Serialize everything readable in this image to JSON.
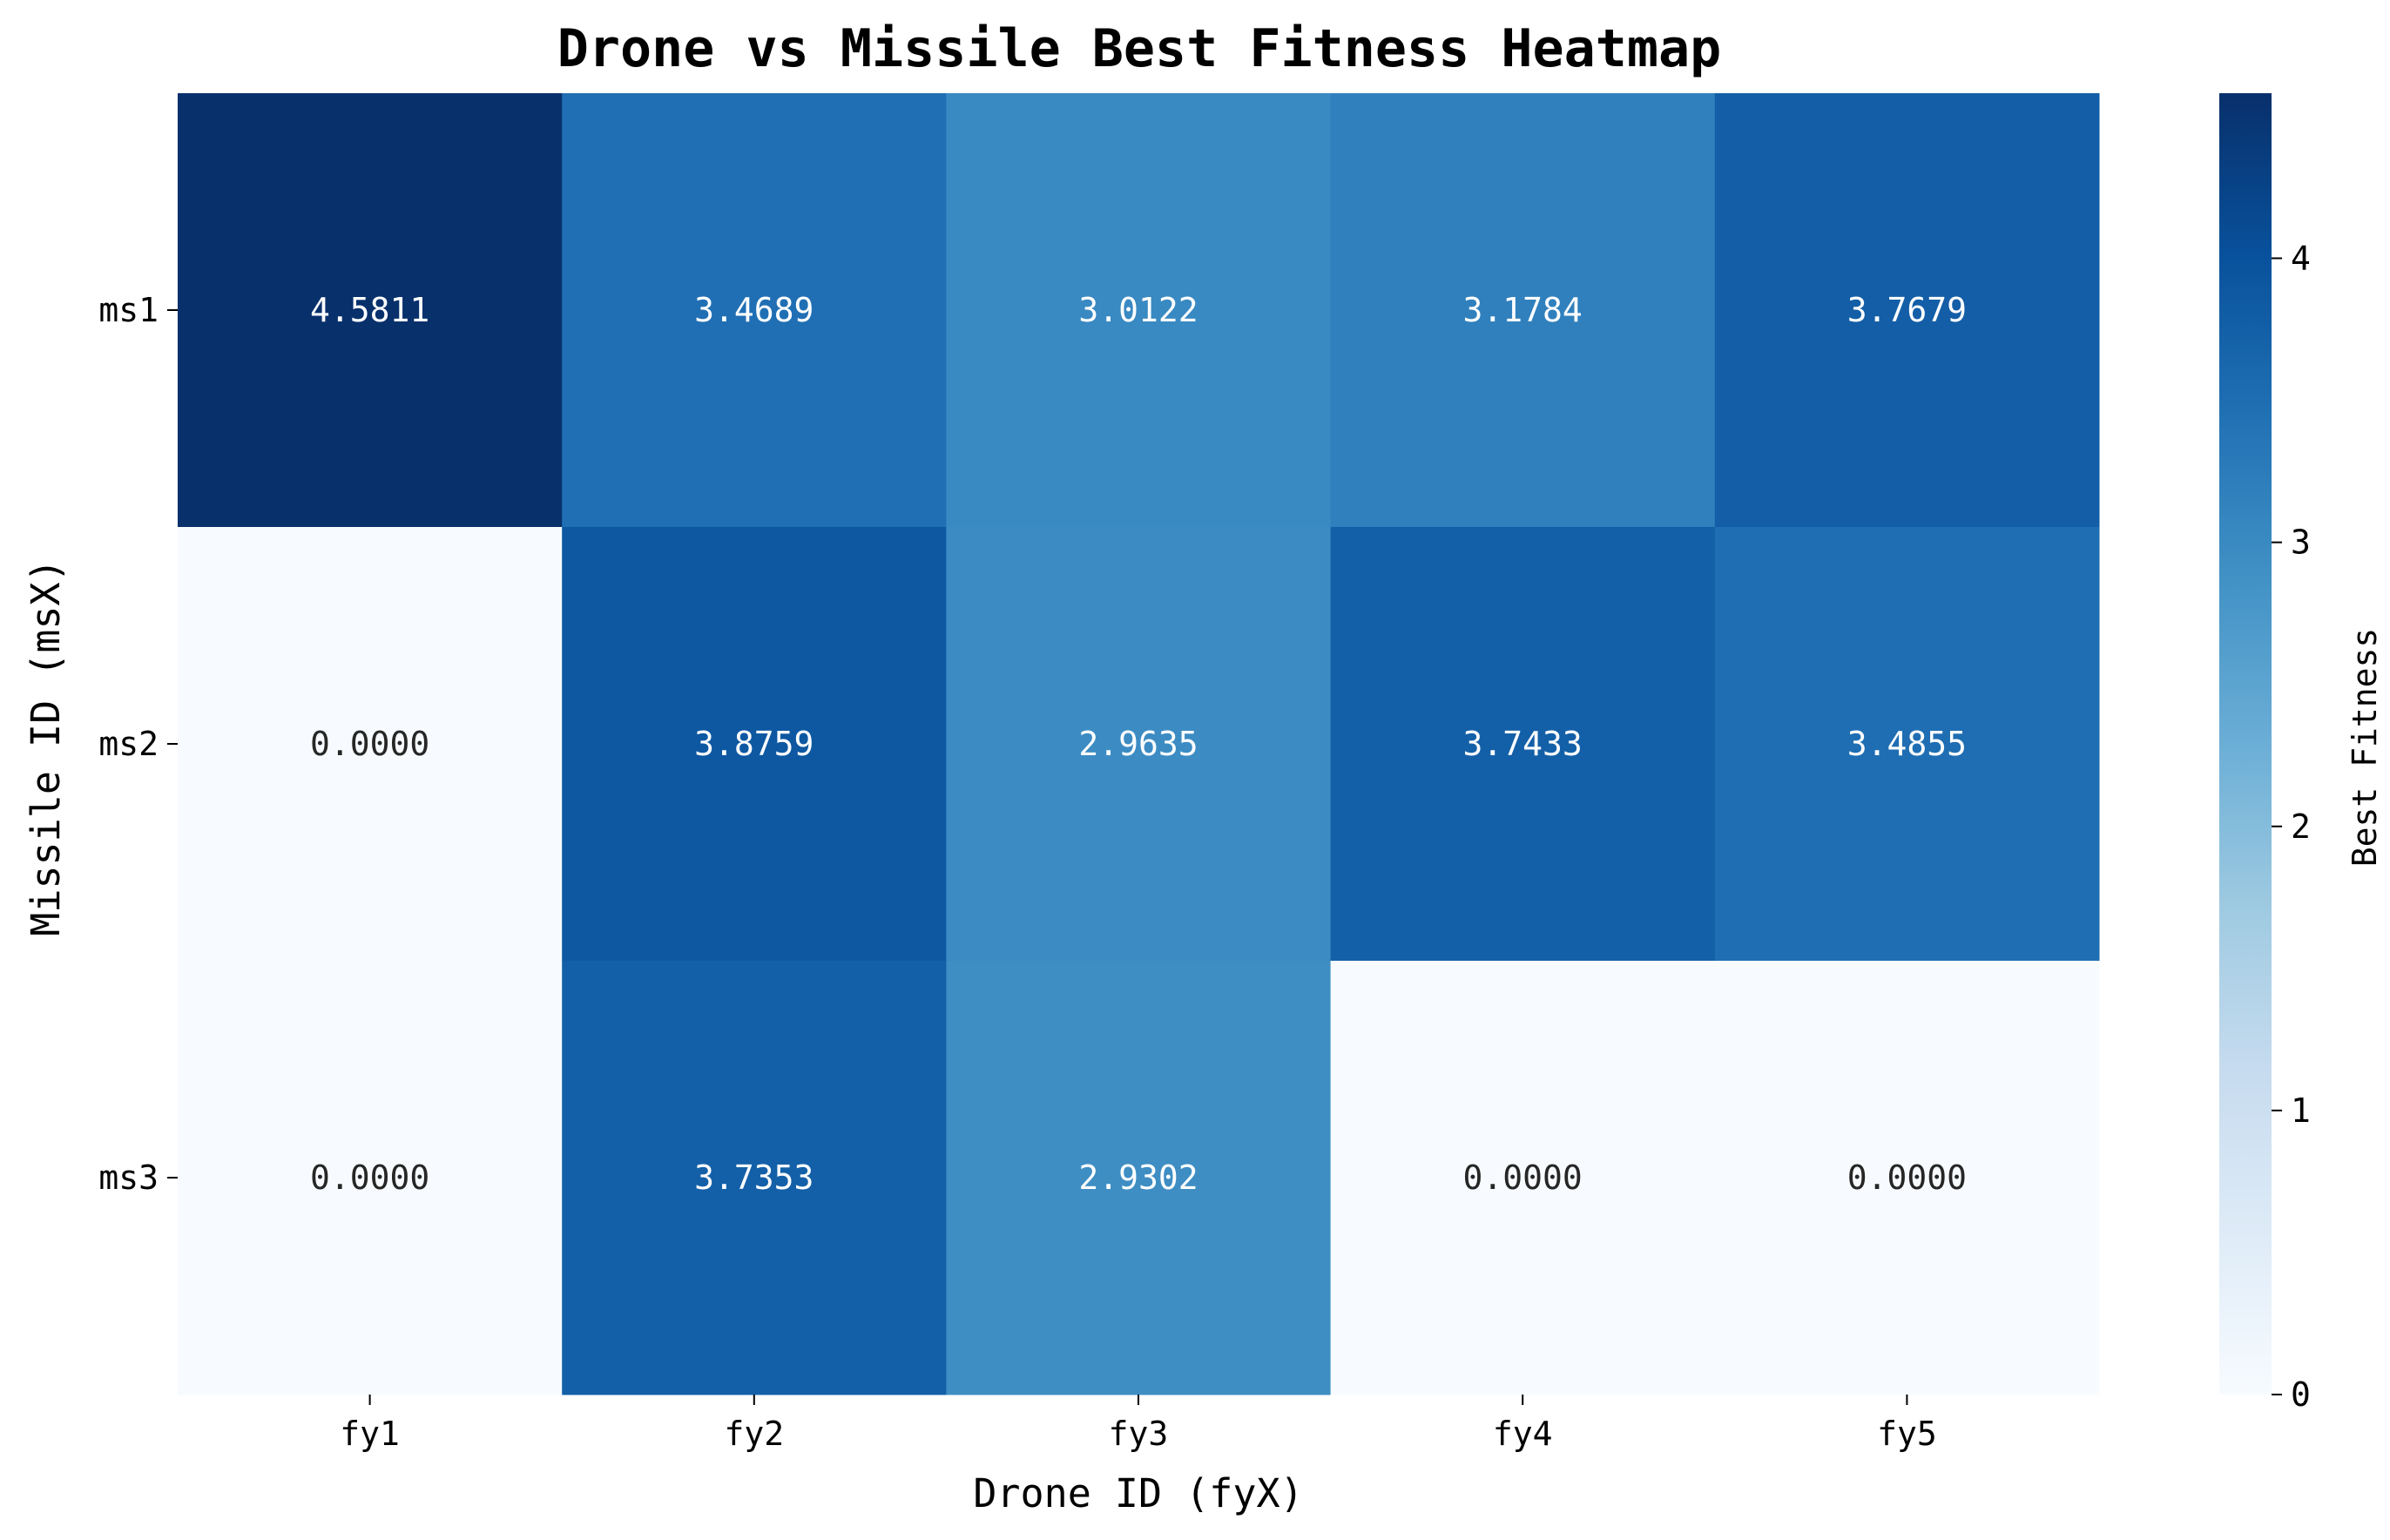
{
  "chart_data": {
    "type": "heatmap",
    "title": "Drone vs Missile Best Fitness Heatmap",
    "xlabel": "Drone ID (fyX)",
    "ylabel": "Missile ID (msX)",
    "x_categories": [
      "fy1",
      "fy2",
      "fy3",
      "fy4",
      "fy5"
    ],
    "y_categories": [
      "ms1",
      "ms2",
      "ms3"
    ],
    "values": [
      [
        4.5811,
        3.4689,
        3.0122,
        3.1784,
        3.7679
      ],
      [
        0.0,
        3.8759,
        2.9635,
        3.7433,
        3.4855
      ],
      [
        0.0,
        3.7353,
        2.9302,
        0.0,
        0.0
      ]
    ],
    "value_labels": [
      [
        "4.5811",
        "3.4689",
        "3.0122",
        "3.1784",
        "3.7679"
      ],
      [
        "0.0000",
        "3.8759",
        "2.9635",
        "3.7433",
        "3.4855"
      ],
      [
        "0.0000",
        "3.7353",
        "2.9302",
        "0.0000",
        "0.0000"
      ]
    ],
    "colormap": "Blues",
    "colorbar": {
      "label": "Best Fitness",
      "range": [
        0,
        4.5811
      ],
      "ticks": [
        0,
        1,
        2,
        3,
        4
      ]
    }
  }
}
